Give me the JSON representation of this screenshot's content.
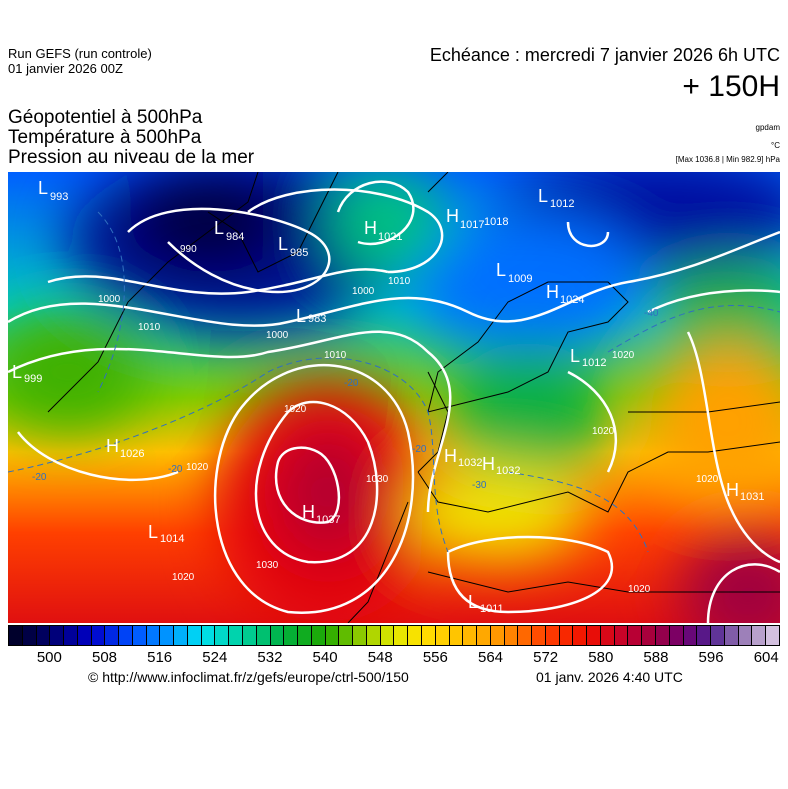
{
  "header": {
    "run": "Run GEFS (run controle)",
    "run_date": "01 janvier 2026 00Z",
    "echeance": "Echéance : mercredi 7 janvier 2026 6h UTC",
    "lead": "+ 150H"
  },
  "fields": {
    "f1": "Géopotentiel à 500hPa",
    "f2": "Température à 500hPa",
    "f3": "Pression au niveau de la mer",
    "u1": "gpdam",
    "u2": "°C",
    "u3": "[Max 1036.8 | Min 982.9] hPa"
  },
  "map": {
    "centers": [
      {
        "type": "L",
        "value": "993"
      },
      {
        "type": "L",
        "value": "984"
      },
      {
        "type": "L",
        "value": "985"
      },
      {
        "type": "H",
        "value": "1021"
      },
      {
        "type": "H",
        "value": "1017"
      },
      {
        "type": "",
        "value": "1018"
      },
      {
        "type": "L",
        "value": "1012"
      },
      {
        "type": "L",
        "value": "1009"
      },
      {
        "type": "H",
        "value": "1024"
      },
      {
        "type": "L",
        "value": "983"
      },
      {
        "type": "L",
        "value": "999"
      },
      {
        "type": "L",
        "value": "1012"
      },
      {
        "type": "H",
        "value": "1026"
      },
      {
        "type": "H",
        "value": "1037"
      },
      {
        "type": "L",
        "value": "1014"
      },
      {
        "type": "H",
        "value": "1032"
      },
      {
        "type": "H",
        "value": "1032"
      },
      {
        "type": "H",
        "value": "1031"
      },
      {
        "type": "L",
        "value": "1011"
      }
    ],
    "isobar_labels": [
      "990",
      "1000",
      "1010",
      "1000",
      "1010",
      "1000",
      "1010",
      "1020",
      "1020",
      "1030",
      "1030",
      "1020",
      "1020",
      "1020",
      "1020",
      "1020"
    ],
    "isotherm_labels": [
      "-20",
      "-20",
      "-20",
      "-30",
      "-20",
      "-40"
    ],
    "isobar_color": "#ffffff",
    "isotherm_color": "#3070c0",
    "coast_color": "#000000"
  },
  "colorbar": {
    "stops": [
      [
        494,
        "#000020"
      ],
      [
        500,
        "#00006a"
      ],
      [
        506,
        "#0000c8"
      ],
      [
        512,
        "#0050ff"
      ],
      [
        518,
        "#00a0ff"
      ],
      [
        522,
        "#00e0f0"
      ],
      [
        528,
        "#00d0a0"
      ],
      [
        534,
        "#00b040"
      ],
      [
        540,
        "#20a800"
      ],
      [
        546,
        "#a0d000"
      ],
      [
        550,
        "#e0e800"
      ],
      [
        554,
        "#ffe000"
      ],
      [
        560,
        "#ffc000"
      ],
      [
        566,
        "#ff9000"
      ],
      [
        572,
        "#ff4000"
      ],
      [
        578,
        "#f01000"
      ],
      [
        584,
        "#c00030"
      ],
      [
        588,
        "#a00040"
      ],
      [
        592,
        "#700070"
      ],
      [
        596,
        "#502090"
      ],
      [
        600,
        "#9070b0"
      ],
      [
        606,
        "#e0d0e8"
      ]
    ],
    "ticks": [
      "500",
      "508",
      "516",
      "524",
      "532",
      "540",
      "548",
      "556",
      "564",
      "572",
      "580",
      "588",
      "596",
      "604"
    ]
  },
  "footer": {
    "copyright": "© http://www.infoclimat.fr/z/gefs/europe/ctrl-500/150",
    "generated": "01 janv. 2026  4:40 UTC"
  }
}
